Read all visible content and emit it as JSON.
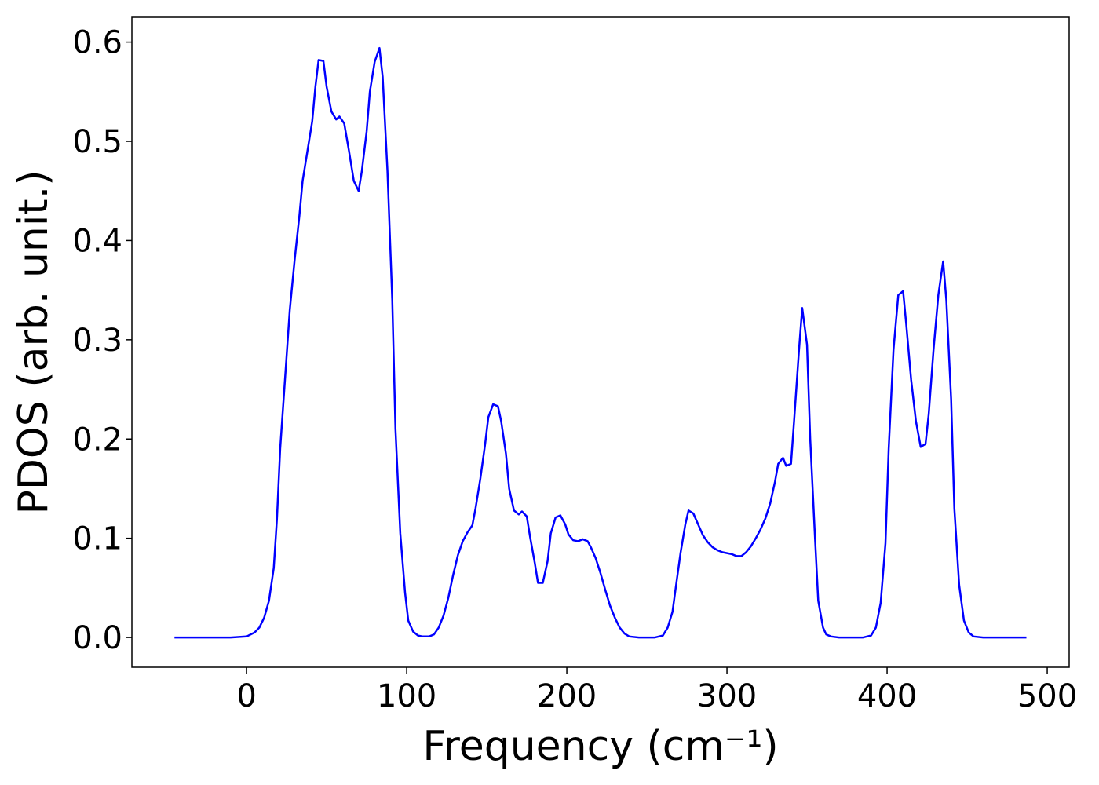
{
  "chart_data": {
    "type": "line",
    "xlabel": "Frequency (cm⁻¹)",
    "ylabel": "PDOS (arb. unit.)",
    "xlim": [
      -71.6,
      513.7
    ],
    "ylim": [
      -0.03,
      0.625
    ],
    "xticks": [
      0,
      100,
      200,
      300,
      400,
      500
    ],
    "yticks": [
      {
        "value": 0,
        "label": "0.0"
      },
      0.1,
      0.2,
      0.3,
      0.4,
      0.5,
      0.6
    ],
    "grid": false,
    "series": [
      {
        "color": "#0000ff",
        "x": [
          -45,
          -10,
          0,
          5,
          8,
          11,
          14,
          17,
          19,
          21,
          24,
          27,
          30,
          33,
          35,
          38,
          41,
          43,
          45,
          48,
          50,
          53,
          56,
          58,
          61,
          64,
          67,
          70,
          72,
          75,
          77,
          80,
          83,
          85,
          88,
          91,
          93,
          96,
          99,
          101,
          104,
          107,
          110,
          114,
          117,
          120,
          123,
          126,
          129,
          132,
          135,
          138,
          141,
          143,
          146,
          149,
          151,
          154,
          157,
          159,
          162,
          164,
          167,
          170,
          172,
          175,
          177,
          180,
          182,
          185,
          188,
          190,
          193,
          196,
          199,
          201,
          204,
          207,
          210,
          213,
          215,
          218,
          221,
          224,
          227,
          230,
          233,
          236,
          239,
          245,
          255,
          260,
          263,
          266,
          268,
          271,
          274,
          276,
          279,
          282,
          285,
          288,
          291,
          294,
          297,
          300,
          303,
          306,
          309,
          312,
          315,
          318,
          321,
          324,
          327,
          330,
          332,
          335,
          337,
          340,
          342,
          345,
          347,
          350,
          352,
          355,
          357,
          360,
          362,
          365,
          370,
          385,
          390,
          393,
          396,
          399,
          401,
          404,
          407,
          410,
          412,
          415,
          418,
          421,
          424,
          426,
          429,
          432,
          435,
          437,
          440,
          442,
          445,
          448,
          451,
          454,
          460,
          487
        ],
        "values": [
          0,
          0,
          0.001,
          0.005,
          0.01,
          0.02,
          0.037,
          0.07,
          0.12,
          0.19,
          0.26,
          0.33,
          0.38,
          0.425,
          0.46,
          0.49,
          0.52,
          0.555,
          0.582,
          0.581,
          0.555,
          0.53,
          0.522,
          0.525,
          0.518,
          0.49,
          0.46,
          0.45,
          0.47,
          0.51,
          0.55,
          0.58,
          0.594,
          0.565,
          0.47,
          0.34,
          0.21,
          0.105,
          0.045,
          0.017,
          0.006,
          0.002,
          0.001,
          0.001,
          0.003,
          0.01,
          0.022,
          0.04,
          0.063,
          0.083,
          0.097,
          0.106,
          0.113,
          0.13,
          0.16,
          0.195,
          0.222,
          0.235,
          0.233,
          0.218,
          0.185,
          0.15,
          0.128,
          0.124,
          0.127,
          0.122,
          0.102,
          0.075,
          0.055,
          0.055,
          0.077,
          0.105,
          0.121,
          0.123,
          0.114,
          0.104,
          0.098,
          0.097,
          0.099,
          0.097,
          0.091,
          0.08,
          0.065,
          0.048,
          0.032,
          0.02,
          0.01,
          0.004,
          0.001,
          0,
          0,
          0.002,
          0.01,
          0.026,
          0.05,
          0.085,
          0.114,
          0.128,
          0.125,
          0.114,
          0.103,
          0.096,
          0.091,
          0.088,
          0.086,
          0.085,
          0.084,
          0.082,
          0.082,
          0.086,
          0.092,
          0.1,
          0.109,
          0.12,
          0.135,
          0.157,
          0.175,
          0.181,
          0.173,
          0.175,
          0.22,
          0.29,
          0.332,
          0.295,
          0.2,
          0.1,
          0.037,
          0.01,
          0.003,
          0.001,
          0,
          0,
          0.002,
          0.01,
          0.035,
          0.095,
          0.19,
          0.29,
          0.345,
          0.349,
          0.315,
          0.26,
          0.218,
          0.192,
          0.195,
          0.225,
          0.29,
          0.345,
          0.379,
          0.34,
          0.24,
          0.13,
          0.053,
          0.017,
          0.005,
          0.001,
          0,
          0
        ]
      }
    ]
  }
}
